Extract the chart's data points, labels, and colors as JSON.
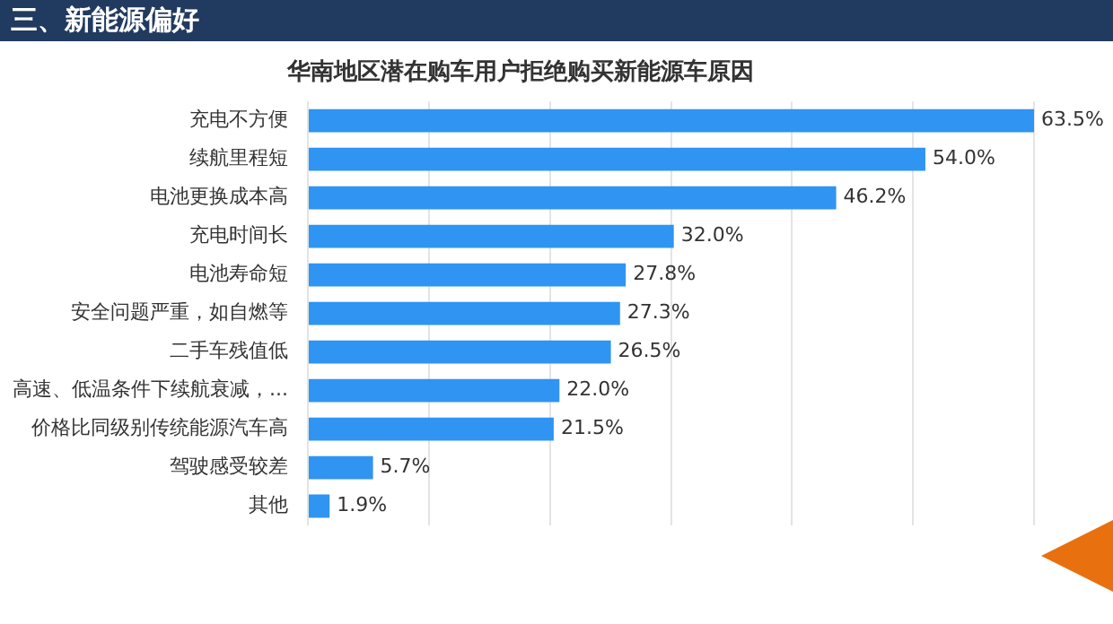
{
  "chart_data": {
    "type": "bar",
    "orientation": "horizontal",
    "title": "三、新能源偏好",
    "subtitle": "华南地区潜在购车用户拒绝购买新能源车原因",
    "categories": [
      "充电不方便",
      "续航里程短",
      "电池更换成本高",
      "充电时间长",
      "电池寿命短",
      "安全问题严重，如自燃等",
      "二手车残值低",
      "高速、低温条件下续航衰减，...",
      "价格比同级别传统能源汽车高",
      "驾驶感受较差",
      "其他"
    ],
    "values": [
      63.5,
      54.0,
      46.2,
      32.0,
      27.8,
      27.3,
      26.5,
      22.0,
      21.5,
      5.7,
      1.9
    ],
    "value_labels": [
      "63.5%",
      "54.0%",
      "46.2%",
      "32.0%",
      "27.8%",
      "27.3%",
      "26.5%",
      "22.0%",
      "21.5%",
      "5.7%",
      "1.9%"
    ],
    "color": "#2f94f2",
    "xlim": [
      0,
      63.5
    ],
    "xticks": [
      {
        "value": 0,
        "label": null
      },
      {
        "value": 10.6,
        "label": null
      },
      {
        "value": 21.2,
        "label": null
      },
      {
        "value": 31.8,
        "label": null
      },
      {
        "value": 42.3,
        "label": null
      },
      {
        "value": 52.9,
        "label": null
      },
      {
        "value": 63.5,
        "label": null
      }
    ],
    "grid": "x",
    "tick_labels": "y",
    "legend": false
  }
}
